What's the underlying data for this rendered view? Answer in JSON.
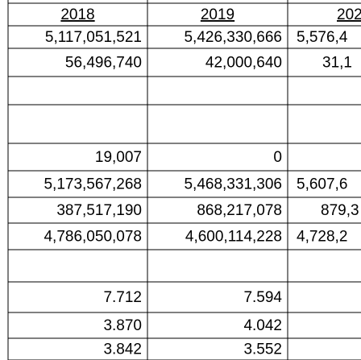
{
  "table": {
    "header": [
      "2018",
      "2019",
      "202"
    ],
    "rows": [
      [
        "5,117,051,521",
        "5,426,330,666",
        "5,576,4"
      ],
      [
        "56,496,740",
        "42,000,640",
        "31,1"
      ],
      [
        null,
        null,
        null
      ],
      [
        null,
        null,
        null
      ],
      [
        "19,007",
        "0",
        null
      ],
      [
        "5,173,567,268",
        "5,468,331,306",
        "5,607,6"
      ],
      [
        "387,517,190",
        "868,217,078",
        "879,3"
      ],
      [
        "4,786,050,078",
        "4,600,114,228",
        "4,728,2"
      ],
      [
        null,
        null,
        null
      ],
      [
        "7.712",
        "7.594",
        null
      ],
      [
        "3.870",
        "4.042",
        null
      ],
      [
        "3.842",
        "3.552",
        null
      ]
    ]
  }
}
